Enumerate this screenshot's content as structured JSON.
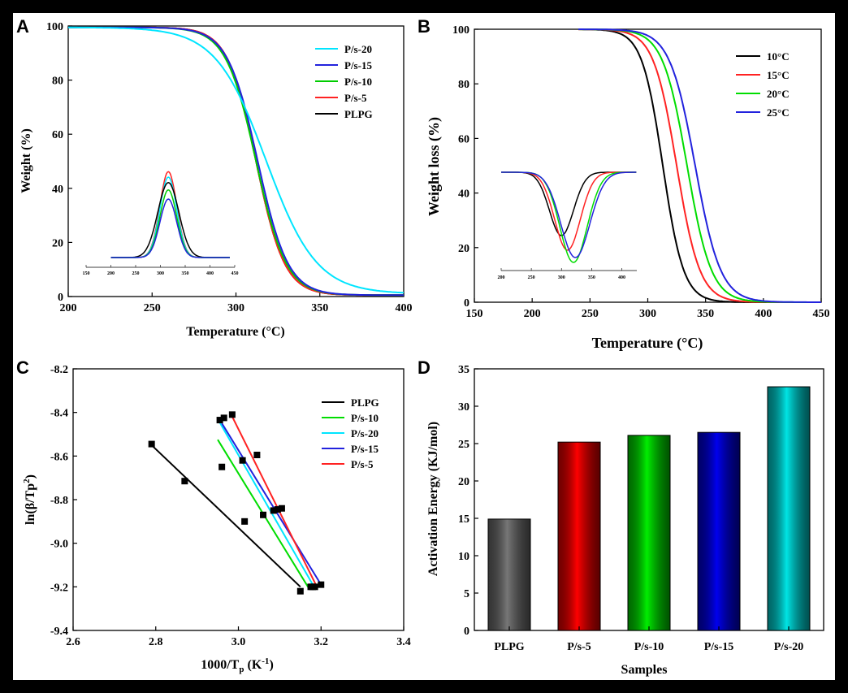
{
  "chart_data": [
    {
      "panel": "A",
      "type": "line",
      "xlabel": "Temperature (°C)",
      "ylabel": "Weight  (%)",
      "xlim": [
        200,
        400
      ],
      "ylim": [
        0,
        100
      ],
      "xticks": [
        "200",
        "250",
        "300",
        "350",
        "400"
      ],
      "yticks": [
        "0",
        "20",
        "40",
        "60",
        "80",
        "100"
      ],
      "legend": [
        "P/s-20",
        "P/s-15",
        "P/s-10",
        "P/s-5",
        "PLPG"
      ],
      "series": [
        {
          "name": "P/s-20",
          "color": "#00e5ff",
          "onset": 280,
          "mid": 318,
          "scale": 15,
          "end_value": 1
        },
        {
          "name": "P/s-15",
          "color": "#2222dd",
          "onset": 285,
          "mid": 313,
          "scale": 9,
          "end_value": 0.5
        },
        {
          "name": "P/s-10",
          "color": "#00cc00",
          "onset": 283,
          "mid": 312,
          "scale": 9,
          "end_value": 0.5
        },
        {
          "name": "P/s-5",
          "color": "#ff2222",
          "onset": 288,
          "mid": 312,
          "scale": 8.5,
          "end_value": 0.5
        },
        {
          "name": "PLPG",
          "color": "#000000",
          "onset": 286,
          "mid": 312,
          "scale": 8.5,
          "end_value": 0.5
        }
      ],
      "inset": {
        "type": "line",
        "xlim": [
          150,
          450
        ],
        "xticks": [
          "150",
          "200",
          "250",
          "300",
          "350",
          "400",
          "450"
        ],
        "series": [
          {
            "name": "P/s-5",
            "color": "#ff2222",
            "center": 316,
            "width": 24,
            "peak": 47
          },
          {
            "name": "P/s-20",
            "color": "#00e5ff",
            "center": 316,
            "width": 24,
            "peak": 44
          },
          {
            "name": "PLPG",
            "color": "#000000",
            "center": 316,
            "width": 30,
            "peak": 41
          },
          {
            "name": "P/s-10",
            "color": "#00cc00",
            "center": 316,
            "width": 24,
            "peak": 37
          },
          {
            "name": "P/s-15",
            "color": "#2222dd",
            "center": 316,
            "width": 24,
            "peak": 32
          }
        ]
      }
    },
    {
      "panel": "B",
      "type": "line",
      "xlabel": "Temperature (°C)",
      "ylabel": "Weight loss (%)",
      "xlim": [
        150,
        450
      ],
      "ylim": [
        0,
        100
      ],
      "xticks": [
        "150",
        "200",
        "250",
        "300",
        "350",
        "400",
        "450"
      ],
      "yticks": [
        "0",
        "20",
        "40",
        "60",
        "80",
        "100"
      ],
      "legend": [
        "10°C",
        "15°C",
        "20°C",
        "25°C"
      ],
      "series": [
        {
          "name": "10°C",
          "color": "#000000",
          "mid": 313,
          "scale": 9
        },
        {
          "name": "15°C",
          "color": "#ff2222",
          "mid": 325,
          "scale": 10
        },
        {
          "name": "20°C",
          "color": "#00dd00",
          "mid": 334,
          "scale": 10.5
        },
        {
          "name": "25°C",
          "color": "#2222dd",
          "mid": 341,
          "scale": 11
        }
      ],
      "inset": {
        "type": "line",
        "xlim": [
          200,
          425
        ],
        "xticks": [
          "200",
          "250",
          "300",
          "350",
          "400"
        ],
        "series": [
          {
            "name": "10°C",
            "color": "#000000",
            "center": 300,
            "width": 28,
            "depth": 26
          },
          {
            "name": "15°C",
            "color": "#ff2222",
            "center": 310,
            "width": 30,
            "depth": 32
          },
          {
            "name": "20°C",
            "color": "#00dd00",
            "center": 320,
            "width": 32,
            "depth": 37
          },
          {
            "name": "25°C",
            "color": "#2222dd",
            "center": 323,
            "width": 34,
            "depth": 35
          }
        ]
      }
    },
    {
      "panel": "C",
      "type": "scatter",
      "xlabel": "1000/Tp (K-1)",
      "ylabel": "ln(β/Tp2)",
      "xlim": [
        2.6,
        3.4
      ],
      "ylim": [
        -9.4,
        -8.2
      ],
      "xticks": [
        "2.6",
        "2.8",
        "3.0",
        "3.2",
        "3.4"
      ],
      "yticks": [
        "-8.2",
        "-8.4",
        "-8.6",
        "-8.8",
        "-9.0",
        "-9.2",
        "-9.4"
      ],
      "legend": [
        "PLPG",
        "P/s-10",
        "P/s-20",
        "P/s-15",
        "P/s-5"
      ],
      "series": [
        {
          "name": "PLPG",
          "color": "#000000",
          "fit": [
            [
              2.79,
              -8.55
            ],
            [
              3.15,
              -9.2
            ]
          ],
          "points": [
            [
              2.79,
              -8.545
            ],
            [
              2.87,
              -8.715
            ],
            [
              3.015,
              -8.9
            ],
            [
              3.15,
              -9.22
            ]
          ]
        },
        {
          "name": "P/s-10",
          "color": "#00dd00",
          "fit": [
            [
              2.95,
              -8.525
            ],
            [
              3.17,
              -9.205
            ]
          ],
          "points": [
            [
              2.96,
              -8.65
            ],
            [
              3.06,
              -8.87
            ],
            [
              3.175,
              -9.2
            ]
          ]
        },
        {
          "name": "P/s-20",
          "color": "#00e5ff",
          "fit": [
            [
              2.95,
              -8.43
            ],
            [
              3.18,
              -9.19
            ]
          ],
          "points": [
            [
              2.955,
              -8.435
            ],
            [
              3.085,
              -8.85
            ],
            [
              3.18,
              -9.2
            ]
          ]
        },
        {
          "name": "P/s-15",
          "color": "#2222dd",
          "fit": [
            [
              2.96,
              -8.45
            ],
            [
              3.2,
              -9.19
            ]
          ],
          "points": [
            [
              2.965,
              -8.425
            ],
            [
              3.01,
              -8.62
            ],
            [
              3.095,
              -8.845
            ],
            [
              3.2,
              -9.19
            ]
          ]
        },
        {
          "name": "P/s-5",
          "color": "#ff2222",
          "fit": [
            [
              2.98,
              -8.4
            ],
            [
              3.19,
              -9.2
            ]
          ],
          "points": [
            [
              2.985,
              -8.41
            ],
            [
              3.045,
              -8.595
            ],
            [
              3.105,
              -8.84
            ],
            [
              3.185,
              -9.2
            ]
          ]
        }
      ]
    },
    {
      "panel": "D",
      "type": "bar",
      "xlabel": "Samples",
      "ylabel": "Activation Energy (KJ/mol)",
      "categories": [
        "PLPG",
        "P/s-5",
        "P/s-10",
        "P/s-15",
        "P/s-20"
      ],
      "values": [
        14.9,
        25.2,
        26.1,
        26.5,
        32.6
      ],
      "colors": [
        "#777777",
        "#ff0000",
        "#00ee00",
        "#0000ee",
        "#00e5e5"
      ],
      "ylim": [
        0,
        35
      ],
      "yticks": [
        "0",
        "5",
        "10",
        "15",
        "20",
        "25",
        "30",
        "35"
      ]
    }
  ],
  "panel_letters": [
    "A",
    "B",
    "C",
    "D"
  ],
  "xlabel_parts": {
    "c": {
      "main": "1000/T",
      "sub": "p",
      "unit": " (K",
      "sup": "-1",
      "close": ")"
    }
  },
  "ylabel_parts": {
    "c": {
      "main": "ln(β/Tp",
      "sup": "2",
      "close": ")"
    }
  }
}
